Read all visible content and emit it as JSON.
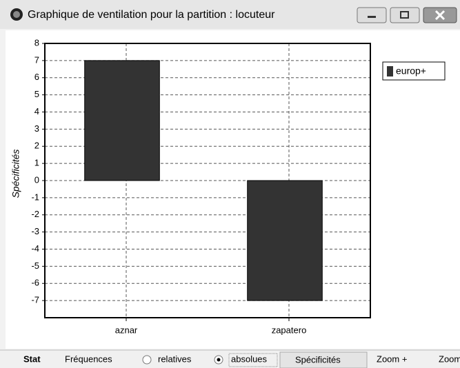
{
  "window": {
    "title": "Graphique de ventilation pour la partition : locuteur"
  },
  "toolbar": {
    "stat": "Stat",
    "frequences": "Fréquences",
    "relatives": "relatives",
    "absolues": "absolues",
    "specificites": "Spécificités",
    "zoom_in": "Zoom +",
    "zoom_out": "Zoom"
  },
  "chart_data": {
    "type": "bar",
    "ylabel": "Spécificités",
    "categories": [
      "aznar",
      "zapatero"
    ],
    "series": [
      {
        "name": "europ+",
        "color": "#333333",
        "values": [
          7,
          -7
        ]
      }
    ],
    "ylim": [
      -8,
      8
    ],
    "yticks": [
      8,
      7,
      6,
      5,
      4,
      3,
      2,
      1,
      0,
      -1,
      -2,
      -3,
      -4,
      -5,
      -6,
      -7
    ],
    "grid": true,
    "legend": "top-right"
  }
}
